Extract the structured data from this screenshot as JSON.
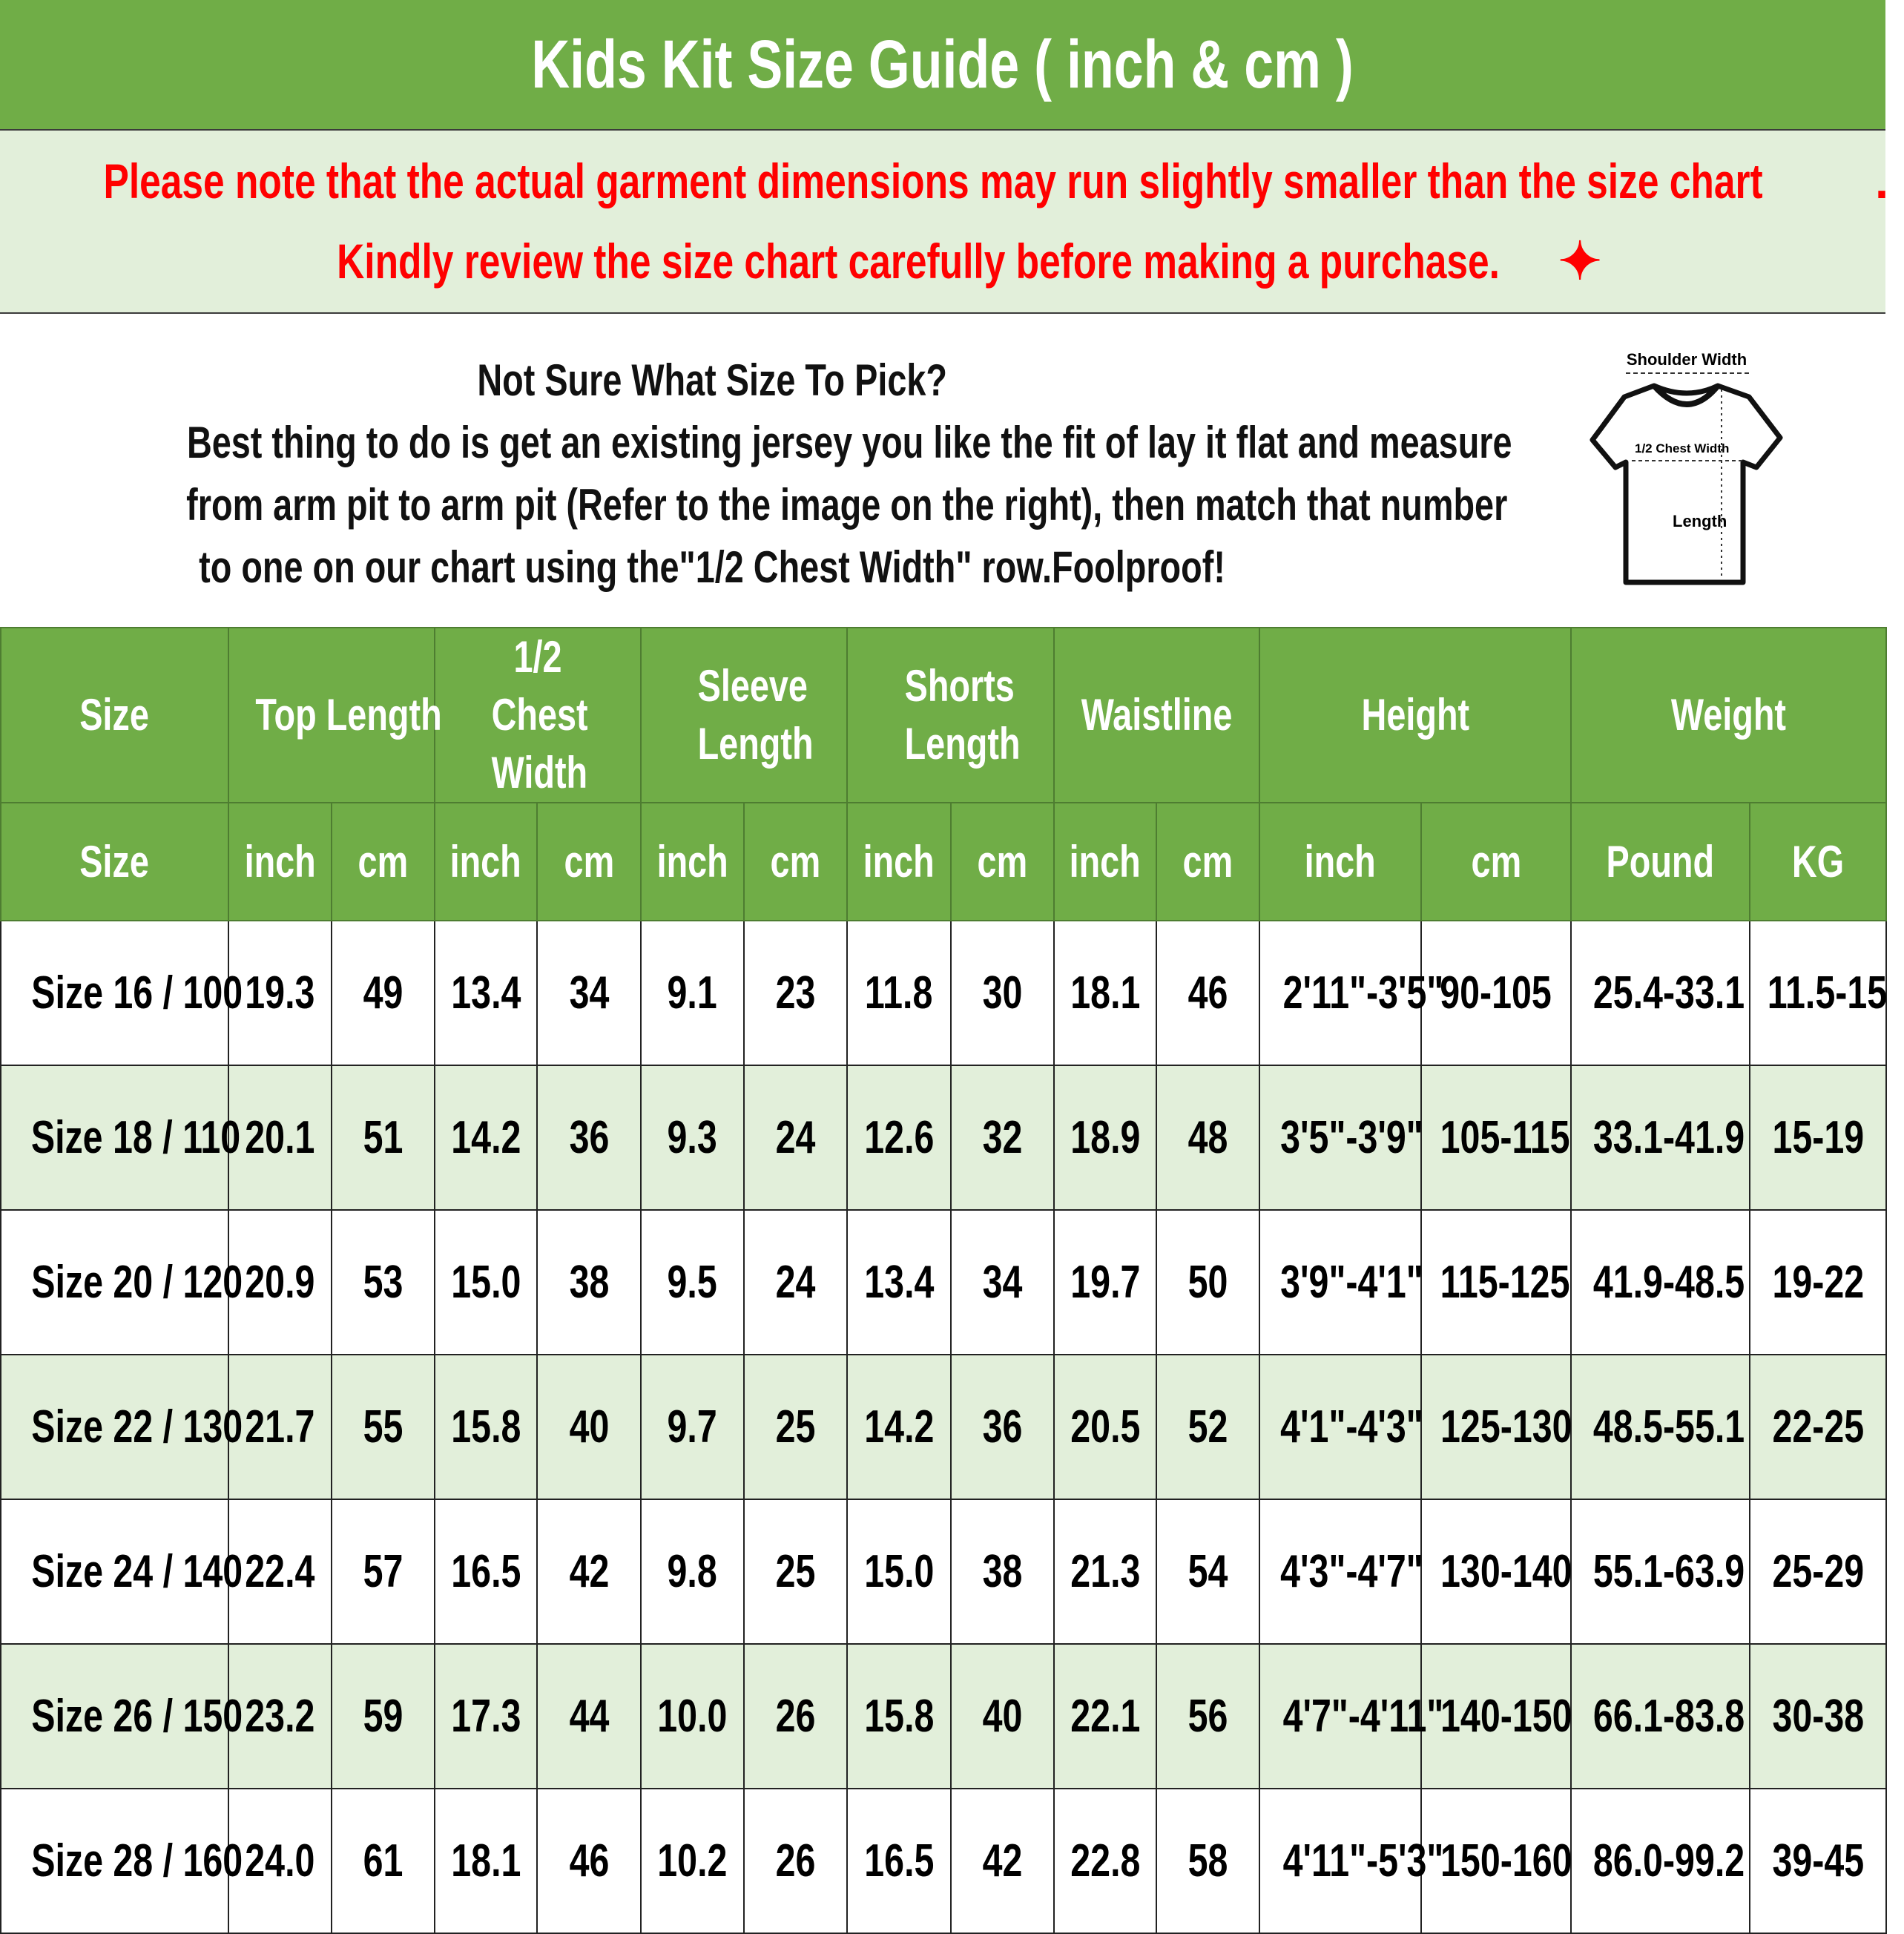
{
  "title": "Kids Kit Size Guide ( inch & cm )",
  "note": {
    "line1": "Please note that the actual garment dimensions may run slightly smaller than the size chart",
    "line1_end": ".",
    "line2": "Kindly review the size chart carefully before making a purchase.",
    "icons": [
      "pushpin-icon",
      "ruler-icon",
      "sparkles-icon"
    ],
    "color": "#ff0000"
  },
  "info": {
    "heading": "Not Sure What Size To Pick?",
    "lines": [
      "Best thing to do is get an existing jersey you like the fit of lay it flat and measure",
      "from arm pit to arm pit (Refer to the image on the right), then match that number",
      "to one on our chart using the\"1/2 Chest Width\" row.Foolproof!"
    ]
  },
  "diagram": {
    "shoulder": "Shoulder Width",
    "chest": "1/2 Chest Width",
    "length": "Length"
  },
  "colors": {
    "header": "#70ad47",
    "alt_row": "#e2efda"
  },
  "table": {
    "groups": [
      "Size",
      "Top Length",
      "1/2 Chest Width",
      "Sleeve Length",
      "Shorts Length",
      "Waistline",
      "Height",
      "Weight"
    ],
    "units": [
      "Size",
      "inch",
      "cm",
      "inch",
      "cm",
      "inch",
      "cm",
      "inch",
      "cm",
      "inch",
      "cm",
      "inch",
      "cm",
      "Pound",
      "KG"
    ],
    "rows": [
      [
        "Size 16 / 100",
        "19.3",
        "49",
        "13.4",
        "34",
        "9.1",
        "23",
        "11.8",
        "30",
        "18.1",
        "46",
        "2'11\"-3'5\"",
        "90-105",
        "25.4-33.1",
        "11.5-15"
      ],
      [
        "Size 18 / 110",
        "20.1",
        "51",
        "14.2",
        "36",
        "9.3",
        "24",
        "12.6",
        "32",
        "18.9",
        "48",
        "3'5\"-3'9\"",
        "105-115",
        "33.1-41.9",
        "15-19"
      ],
      [
        "Size 20 / 120",
        "20.9",
        "53",
        "15.0",
        "38",
        "9.5",
        "24",
        "13.4",
        "34",
        "19.7",
        "50",
        "3'9\"-4'1\"",
        "115-125",
        "41.9-48.5",
        "19-22"
      ],
      [
        "Size 22 / 130",
        "21.7",
        "55",
        "15.8",
        "40",
        "9.7",
        "25",
        "14.2",
        "36",
        "20.5",
        "52",
        "4'1\"-4'3\"",
        "125-130",
        "48.5-55.1",
        "22-25"
      ],
      [
        "Size 24 / 140",
        "22.4",
        "57",
        "16.5",
        "42",
        "9.8",
        "25",
        "15.0",
        "38",
        "21.3",
        "54",
        "4'3\"-4'7\"",
        "130-140",
        "55.1-63.9",
        "25-29"
      ],
      [
        "Size 26 / 150",
        "23.2",
        "59",
        "17.3",
        "44",
        "10.0",
        "26",
        "15.8",
        "40",
        "22.1",
        "56",
        "4'7\"-4'11\"",
        "140-150",
        "66.1-83.8",
        "30-38"
      ],
      [
        "Size 28 / 160",
        "24.0",
        "61",
        "18.1",
        "46",
        "10.2",
        "26",
        "16.5",
        "42",
        "22.8",
        "58",
        "4'11\"-5'3\"",
        "150-160",
        "86.0-99.2",
        "39-45"
      ]
    ]
  }
}
